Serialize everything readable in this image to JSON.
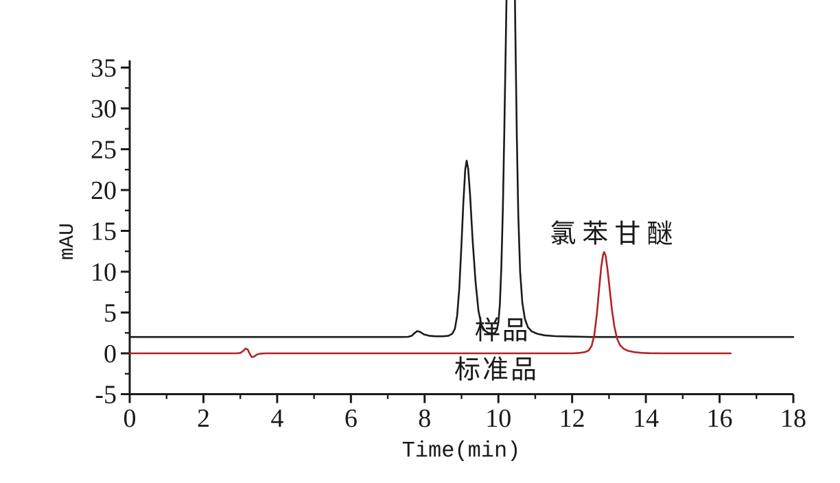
{
  "chart_data": {
    "type": "line",
    "title": "",
    "xlabel": "Time(min)",
    "ylabel": "mAU",
    "xlim": [
      0,
      18
    ],
    "ylim": [
      -5,
      35
    ],
    "x_ticks": [
      0,
      2,
      4,
      6,
      8,
      10,
      12,
      14,
      16,
      18
    ],
    "x_minor_ticks": [
      1,
      3,
      5,
      7,
      9,
      11,
      13,
      15,
      17
    ],
    "y_ticks": [
      -5,
      0,
      5,
      10,
      15,
      20,
      25,
      30,
      35
    ],
    "y_minor_ticks": [
      -2.5,
      2.5,
      7.5,
      12.5,
      17.5,
      22.5,
      27.5,
      32.5
    ],
    "grid": false,
    "legend_position": "none",
    "axis_color": "#1a1a1a",
    "background_color": "#ffffff",
    "annotations": [
      {
        "text": "样品",
        "x": 10.1,
        "y": 3.1,
        "meaning": "sample trace label",
        "color": "#1a1a1a"
      },
      {
        "text": "标准品",
        "x": 9.95,
        "y": -1.7,
        "meaning": "standard trace label",
        "color": "#1a1a1a"
      },
      {
        "text": "氯苯甘醚",
        "x": 13.15,
        "y": 15.0,
        "meaning": "chlorphenesin peak label",
        "color": "#1a1a1a"
      }
    ],
    "series": [
      {
        "name": "样品",
        "color": "#1a1a1a",
        "baseline_mAU": 2,
        "peaks_min": [
          7.8,
          9.14,
          10.33
        ],
        "points": [
          [
            0,
            2
          ],
          [
            0.5,
            2
          ],
          [
            1,
            2
          ],
          [
            1.5,
            2
          ],
          [
            2,
            2
          ],
          [
            2.5,
            2
          ],
          [
            3,
            2
          ],
          [
            3.5,
            2
          ],
          [
            4,
            2
          ],
          [
            4.5,
            2
          ],
          [
            5,
            2
          ],
          [
            5.5,
            2
          ],
          [
            6,
            2
          ],
          [
            6.5,
            2
          ],
          [
            7,
            2
          ],
          [
            7.4,
            2
          ],
          [
            7.55,
            2.02
          ],
          [
            7.65,
            2.15
          ],
          [
            7.72,
            2.45
          ],
          [
            7.8,
            2.72
          ],
          [
            7.88,
            2.62
          ],
          [
            7.98,
            2.32
          ],
          [
            8.12,
            2.15
          ],
          [
            8.3,
            2.08
          ],
          [
            8.5,
            2.08
          ],
          [
            8.65,
            2.15
          ],
          [
            8.75,
            2.4
          ],
          [
            8.82,
            3.0
          ],
          [
            8.88,
            4.6
          ],
          [
            8.94,
            8.0
          ],
          [
            9.0,
            13.5
          ],
          [
            9.05,
            18.5
          ],
          [
            9.1,
            22.5
          ],
          [
            9.14,
            23.6
          ],
          [
            9.18,
            22.6
          ],
          [
            9.23,
            19.5
          ],
          [
            9.3,
            14.0
          ],
          [
            9.38,
            8.8
          ],
          [
            9.46,
            5.2
          ],
          [
            9.54,
            3.5
          ],
          [
            9.63,
            2.8
          ],
          [
            9.73,
            2.5
          ],
          [
            9.83,
            2.4
          ],
          [
            9.9,
            2.5
          ],
          [
            9.96,
            2.9
          ],
          [
            10.0,
            3.8
          ],
          [
            10.04,
            6.0
          ],
          [
            10.08,
            10.5
          ],
          [
            10.12,
            17.5
          ],
          [
            10.16,
            27.0
          ],
          [
            10.2,
            38.0
          ],
          [
            10.24,
            49.0
          ],
          [
            10.28,
            57.0
          ],
          [
            10.32,
            62.0
          ],
          [
            10.36,
            61.5
          ],
          [
            10.4,
            56.0
          ],
          [
            10.44,
            46.0
          ],
          [
            10.47,
            36.0
          ],
          [
            10.5,
            26.5
          ],
          [
            10.54,
            17.0
          ],
          [
            10.59,
            10.0
          ],
          [
            10.65,
            6.2
          ],
          [
            10.72,
            4.2
          ],
          [
            10.8,
            3.2
          ],
          [
            10.9,
            2.7
          ],
          [
            11.05,
            2.4
          ],
          [
            11.25,
            2.2
          ],
          [
            11.55,
            2.1
          ],
          [
            12,
            2.05
          ],
          [
            12.5,
            2
          ],
          [
            13,
            2
          ],
          [
            13.5,
            2
          ],
          [
            14,
            2
          ],
          [
            14.5,
            2
          ],
          [
            15,
            2
          ],
          [
            15.5,
            2
          ],
          [
            16,
            2
          ],
          [
            16.5,
            2
          ],
          [
            17,
            2
          ],
          [
            17.5,
            2
          ],
          [
            18,
            2
          ]
        ]
      },
      {
        "name": "标准品",
        "color": "#b22222",
        "baseline_mAU": 0,
        "peaks_min": [
          12.87
        ],
        "points": [
          [
            0,
            0
          ],
          [
            0.5,
            0
          ],
          [
            1,
            0
          ],
          [
            1.5,
            0
          ],
          [
            2,
            0
          ],
          [
            2.5,
            0
          ],
          [
            2.9,
            0
          ],
          [
            3.0,
            0.05
          ],
          [
            3.08,
            0.3
          ],
          [
            3.14,
            0.58
          ],
          [
            3.2,
            0.48
          ],
          [
            3.26,
            -0.08
          ],
          [
            3.31,
            -0.45
          ],
          [
            3.37,
            -0.4
          ],
          [
            3.45,
            -0.15
          ],
          [
            3.55,
            -0.03
          ],
          [
            3.7,
            0
          ],
          [
            4,
            0
          ],
          [
            4.5,
            0
          ],
          [
            5,
            0
          ],
          [
            5.5,
            0
          ],
          [
            6,
            0
          ],
          [
            6.5,
            0
          ],
          [
            7,
            0
          ],
          [
            7.5,
            0
          ],
          [
            8,
            0
          ],
          [
            8.5,
            0
          ],
          [
            9,
            0
          ],
          [
            9.5,
            0
          ],
          [
            10,
            0
          ],
          [
            10.5,
            0
          ],
          [
            11,
            0
          ],
          [
            11.5,
            0
          ],
          [
            12.0,
            0
          ],
          [
            12.2,
            0.05
          ],
          [
            12.35,
            0.15
          ],
          [
            12.45,
            0.35
          ],
          [
            12.53,
            0.9
          ],
          [
            12.6,
            2.2
          ],
          [
            12.67,
            4.8
          ],
          [
            12.73,
            7.8
          ],
          [
            12.79,
            10.6
          ],
          [
            12.84,
            12.1
          ],
          [
            12.87,
            12.4
          ],
          [
            12.91,
            11.9
          ],
          [
            12.96,
            10.3
          ],
          [
            13.02,
            7.8
          ],
          [
            13.08,
            5.3
          ],
          [
            13.15,
            3.2
          ],
          [
            13.22,
            1.8
          ],
          [
            13.3,
            1.0
          ],
          [
            13.4,
            0.55
          ],
          [
            13.52,
            0.3
          ],
          [
            13.68,
            0.15
          ],
          [
            13.88,
            0.06
          ],
          [
            14.1,
            0.02
          ],
          [
            14.5,
            0
          ],
          [
            15,
            0
          ],
          [
            15.5,
            0
          ],
          [
            16,
            0
          ],
          [
            16.3,
            0
          ]
        ]
      }
    ]
  }
}
